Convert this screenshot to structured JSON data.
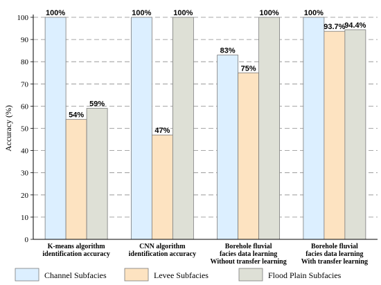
{
  "chart_data": {
    "type": "bar",
    "categories": [
      [
        "K-means algorithm",
        "identification accuracy"
      ],
      [
        "CNN algorithm",
        "identification accuracy"
      ],
      [
        "Borehole fluvial",
        "facies data learning",
        "Without transfer learning"
      ],
      [
        "Borehole fluvial",
        "facies data learning",
        "With transfer learning"
      ]
    ],
    "series": [
      {
        "name": "Channel Subfacies",
        "color": "#dcefff",
        "values": [
          100,
          100,
          83,
          100
        ],
        "labels": [
          "100%",
          "100%",
          "83%",
          "100%"
        ]
      },
      {
        "name": "Levee Subfacies",
        "color": "#fde3c1",
        "values": [
          54,
          47,
          75,
          93.7
        ],
        "labels": [
          "54%",
          "47%",
          "75%",
          "93.7%"
        ]
      },
      {
        "name": "Flood Plain Subfacies",
        "color": "#dee0d6",
        "values": [
          59,
          100,
          100,
          94.4
        ],
        "labels": [
          "59%",
          "100%",
          "100%",
          "94.4%"
        ]
      }
    ],
    "ylabel": "Accuracy (%)",
    "xlabel": "",
    "title": "",
    "ylim": [
      0,
      100
    ],
    "yticks": [
      0,
      10,
      20,
      30,
      40,
      50,
      60,
      70,
      80,
      90,
      100
    ],
    "grid": "dashed-horizontal",
    "legend": "bottom"
  }
}
